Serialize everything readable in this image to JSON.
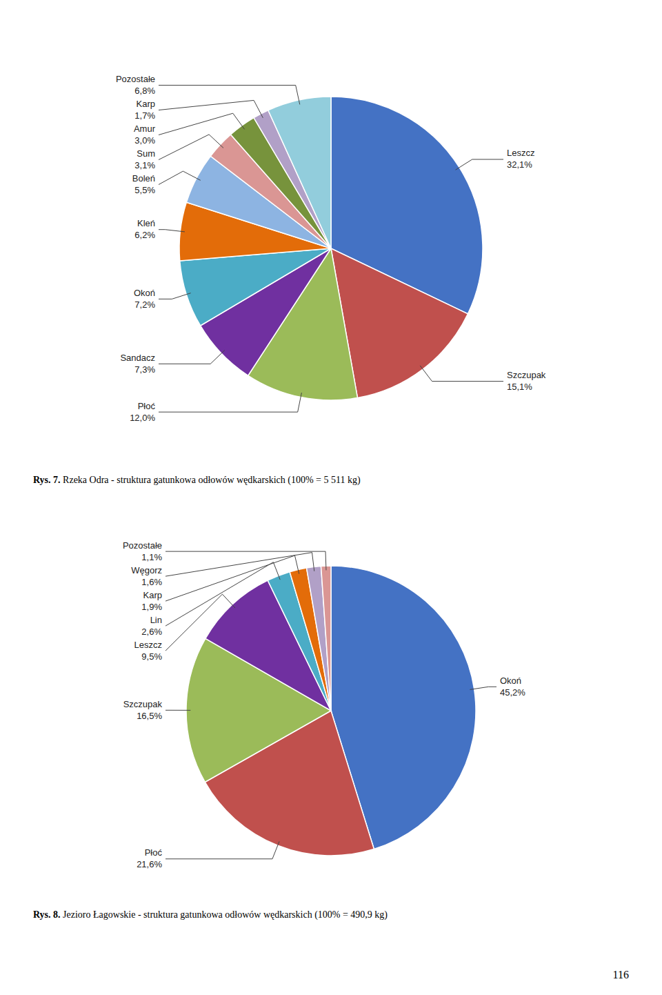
{
  "chart_data": [
    {
      "type": "pie",
      "title": "Rys. 7. Rzeka Odra - struktura gatunkowa odłowów wędkarskich (100% = 5 511 kg)",
      "categories": [
        "Leszcz",
        "Szczupak",
        "Płoć",
        "Sandacz",
        "Okoń",
        "Kleń",
        "Boleń",
        "Sum",
        "Amur",
        "Karp",
        "Pozostałe"
      ],
      "values": [
        32.1,
        15.1,
        12.0,
        7.3,
        7.2,
        6.2,
        5.5,
        3.1,
        3.0,
        1.7,
        6.8
      ],
      "value_labels": [
        "32,1%",
        "15,1%",
        "12,0%",
        "7,3%",
        "7,2%",
        "6,2%",
        "5,5%",
        "3,1%",
        "3,0%",
        "1,7%",
        "6,8%"
      ],
      "colors": [
        "#4472C4",
        "#C0504D",
        "#9BBB59",
        "#7030A0",
        "#4BACC6",
        "#E36C09",
        "#8DB4E2",
        "#DA9694",
        "#77933C",
        "#B1A0C7",
        "#92CDDC"
      ],
      "data_labels": true
    },
    {
      "type": "pie",
      "title": "Rys. 8. Jezioro Łagowskie - struktura gatunkowa odłowów wędkarskich (100% = 490,9 kg)",
      "categories": [
        "Okoń",
        "Płoć",
        "Szczupak",
        "Leszcz",
        "Lin",
        "Karp",
        "Węgorz",
        "Pozostałe"
      ],
      "values": [
        45.2,
        21.6,
        16.5,
        9.5,
        2.6,
        1.9,
        1.6,
        1.1
      ],
      "value_labels": [
        "45,2%",
        "21,6%",
        "16,5%",
        "9,5%",
        "2,6%",
        "1,9%",
        "1,6%",
        "1,1%"
      ],
      "colors": [
        "#4472C4",
        "#C0504D",
        "#9BBB59",
        "#7030A0",
        "#4BACC6",
        "#E36C09",
        "#B1A0C7",
        "#DA9694"
      ],
      "data_labels": true
    }
  ],
  "page_number": "116"
}
